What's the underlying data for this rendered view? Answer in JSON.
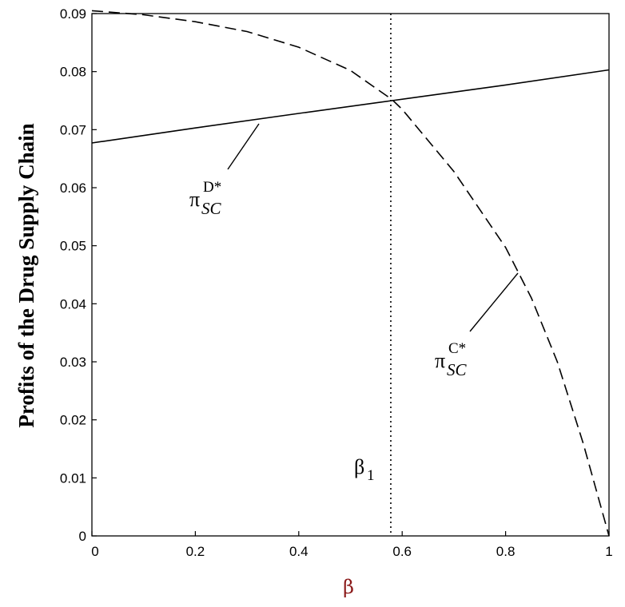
{
  "chart_data": {
    "type": "line",
    "xlabel": "β",
    "ylabel": "Profits of the Drug Supply Chain",
    "xlim": [
      0,
      1
    ],
    "ylim": [
      0,
      0.09
    ],
    "x_ticks": [
      "0",
      "0.2",
      "0.4",
      "0.6",
      "0.8",
      "1"
    ],
    "y_ticks": [
      "0",
      "0.01",
      "0.02",
      "0.03",
      "0.04",
      "0.05",
      "0.06",
      "0.07",
      "0.08",
      "0.09"
    ],
    "series": [
      {
        "name": "π_SC^D*",
        "style": "solid",
        "x": [
          0,
          0.2,
          0.4,
          0.58,
          0.8,
          1.0
        ],
        "y": [
          0.0677,
          0.0703,
          0.0728,
          0.075,
          0.0777,
          0.0803
        ]
      },
      {
        "name": "π_SC^C*",
        "style": "dashed",
        "x": [
          0,
          0.1,
          0.2,
          0.3,
          0.4,
          0.5,
          0.58,
          0.6,
          0.7,
          0.8,
          0.85,
          0.9,
          0.95,
          1.0
        ],
        "y": [
          0.0905,
          0.0898,
          0.0886,
          0.0869,
          0.0842,
          0.0802,
          0.0752,
          0.0735,
          0.0628,
          0.0497,
          0.041,
          0.03,
          0.016,
          0.0
        ]
      }
    ],
    "vline": {
      "x": 0.578,
      "style": "dotted",
      "label": "β",
      "label_sub": "1"
    },
    "annotations": [
      {
        "main": "π",
        "sub": "SC",
        "sup": "D*"
      },
      {
        "main": "π",
        "sub": "SC",
        "sup": "C*"
      }
    ],
    "grid": false,
    "legend": "none"
  }
}
